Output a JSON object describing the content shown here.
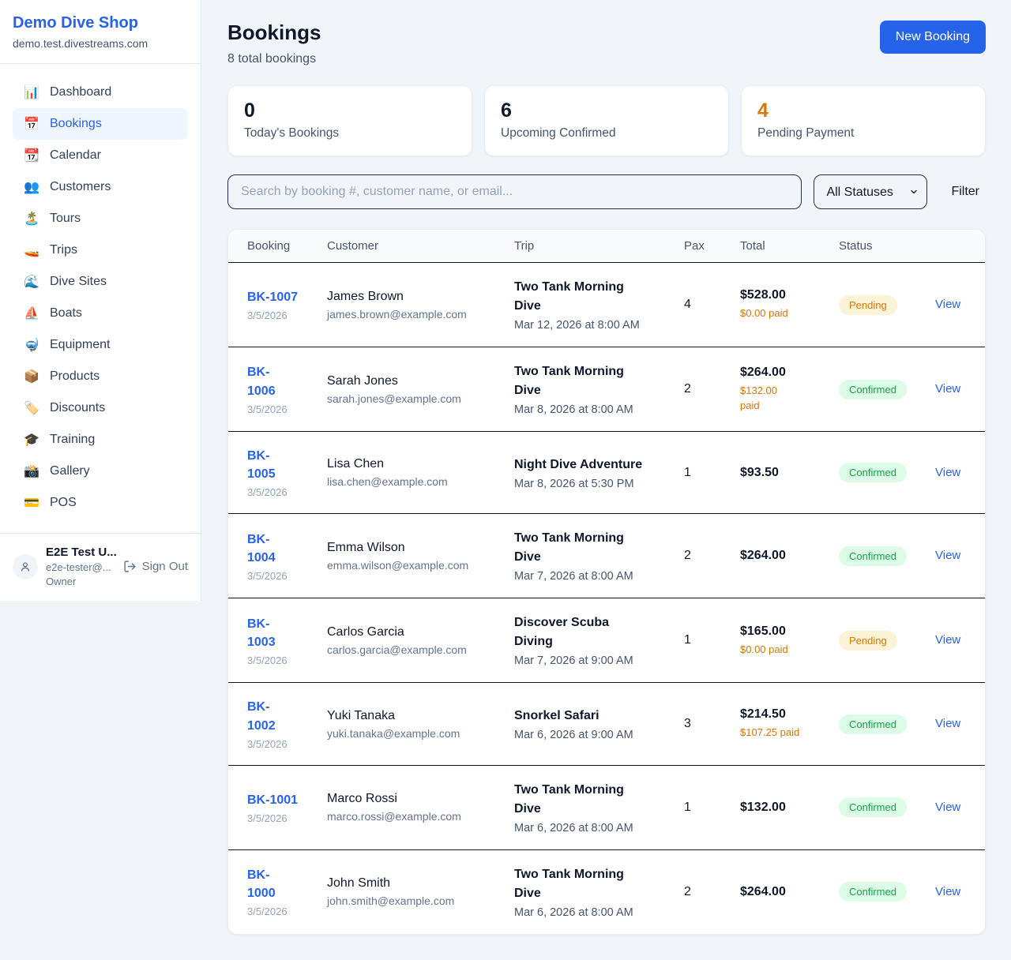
{
  "colors": {
    "accent": "#2563eb",
    "pending_text": "#d97706",
    "pending_bg": "#fdf3d7",
    "confirmed_text": "#16a34a",
    "confirmed_bg": "#dcfce7",
    "page_bg": "#f1f5f9"
  },
  "sidebar": {
    "brand": {
      "name": "Demo Dive Shop",
      "domain": "demo.test.divestreams.com"
    },
    "items": [
      {
        "icon": "📊",
        "icon_name": "bar-chart-icon",
        "label": "Dashboard",
        "active": false
      },
      {
        "icon": "📅",
        "icon_name": "calendar-icon",
        "label": "Bookings",
        "active": true
      },
      {
        "icon": "📆",
        "icon_name": "tear-calendar-icon",
        "label": "Calendar",
        "active": false
      },
      {
        "icon": "👥",
        "icon_name": "people-icon",
        "label": "Customers",
        "active": false
      },
      {
        "icon": "🏝️",
        "icon_name": "island-icon",
        "label": "Tours",
        "active": false
      },
      {
        "icon": "🚤",
        "icon_name": "speedboat-icon",
        "label": "Trips",
        "active": false
      },
      {
        "icon": "🌊",
        "icon_name": "wave-icon",
        "label": "Dive Sites",
        "active": false
      },
      {
        "icon": "⛵",
        "icon_name": "sailboat-icon",
        "label": "Boats",
        "active": false
      },
      {
        "icon": "🤿",
        "icon_name": "diving-mask-icon",
        "label": "Equipment",
        "active": false
      },
      {
        "icon": "📦",
        "icon_name": "package-icon",
        "label": "Products",
        "active": false
      },
      {
        "icon": "🏷️",
        "icon_name": "tag-icon",
        "label": "Discounts",
        "active": false
      },
      {
        "icon": "🎓",
        "icon_name": "graduation-cap-icon",
        "label": "Training",
        "active": false
      },
      {
        "icon": "📸",
        "icon_name": "camera-icon",
        "label": "Gallery",
        "active": false
      },
      {
        "icon": "💳",
        "icon_name": "credit-card-icon",
        "label": "POS",
        "active": false
      }
    ],
    "user": {
      "name": "E2E Test U...",
      "email": "e2e-tester@...",
      "role": "Owner",
      "sign_out_label": "Sign Out"
    }
  },
  "header": {
    "title": "Bookings",
    "subtitle": "8 total bookings",
    "new_booking_label": "New Booking"
  },
  "stats": [
    {
      "value": "0",
      "label": "Today's Bookings",
      "highlight": false
    },
    {
      "value": "6",
      "label": "Upcoming Confirmed",
      "highlight": false
    },
    {
      "value": "4",
      "label": "Pending Payment",
      "highlight": true
    }
  ],
  "controls": {
    "search_placeholder": "Search by booking #, customer name, or email...",
    "status_filter_value": "All Statuses",
    "filter_label": "Filter"
  },
  "table": {
    "columns": [
      "Booking",
      "Customer",
      "Trip",
      "Pax",
      "Total",
      "Status"
    ],
    "view_label": "View",
    "rows": [
      {
        "id": "BK-1007",
        "date": "3/5/2026",
        "customer": "James Brown",
        "email": "james.brown@example.com",
        "trip": "Two Tank Morning\nDive",
        "trip_time": "Mar 12, 2026 at 8:00 AM",
        "pax": "4",
        "total": "$528.00",
        "paid": "$0.00 paid",
        "status": "Pending"
      },
      {
        "id": "BK-\n1006",
        "date": "3/5/2026",
        "customer": "Sarah Jones",
        "email": "sarah.jones@example.com",
        "trip": "Two Tank Morning\nDive",
        "trip_time": "Mar 8, 2026 at 8:00 AM",
        "pax": "2",
        "total": "$264.00",
        "paid": "$132.00\npaid",
        "status": "Confirmed"
      },
      {
        "id": "BK-\n1005",
        "date": "3/5/2026",
        "customer": "Lisa Chen",
        "email": "lisa.chen@example.com",
        "trip": "Night Dive Adventure",
        "trip_time": "Mar 8, 2026 at 5:30 PM",
        "pax": "1",
        "total": "$93.50",
        "paid": null,
        "status": "Confirmed"
      },
      {
        "id": "BK-\n1004",
        "date": "3/5/2026",
        "customer": "Emma Wilson",
        "email": "emma.wilson@example.com",
        "trip": "Two Tank Morning\nDive",
        "trip_time": "Mar 7, 2026 at 8:00 AM",
        "pax": "2",
        "total": "$264.00",
        "paid": null,
        "status": "Confirmed"
      },
      {
        "id": "BK-\n1003",
        "date": "3/5/2026",
        "customer": "Carlos Garcia",
        "email": "carlos.garcia@example.com",
        "trip": "Discover Scuba\nDiving",
        "trip_time": "Mar 7, 2026 at 9:00 AM",
        "pax": "1",
        "total": "$165.00",
        "paid": "$0.00 paid",
        "status": "Pending"
      },
      {
        "id": "BK-\n1002",
        "date": "3/5/2026",
        "customer": "Yuki Tanaka",
        "email": "yuki.tanaka@example.com",
        "trip": "Snorkel Safari",
        "trip_time": "Mar 6, 2026 at 9:00 AM",
        "pax": "3",
        "total": "$214.50",
        "paid": "$107.25 paid",
        "status": "Confirmed"
      },
      {
        "id": "BK-1001",
        "date": "3/5/2026",
        "customer": "Marco Rossi",
        "email": "marco.rossi@example.com",
        "trip": "Two Tank Morning\nDive",
        "trip_time": "Mar 6, 2026 at 8:00 AM",
        "pax": "1",
        "total": "$132.00",
        "paid": null,
        "status": "Confirmed"
      },
      {
        "id": "BK-\n1000",
        "date": "3/5/2026",
        "customer": "John Smith",
        "email": "john.smith@example.com",
        "trip": "Two Tank Morning\nDive",
        "trip_time": "Mar 6, 2026 at 8:00 AM",
        "pax": "2",
        "total": "$264.00",
        "paid": null,
        "status": "Confirmed"
      }
    ]
  }
}
